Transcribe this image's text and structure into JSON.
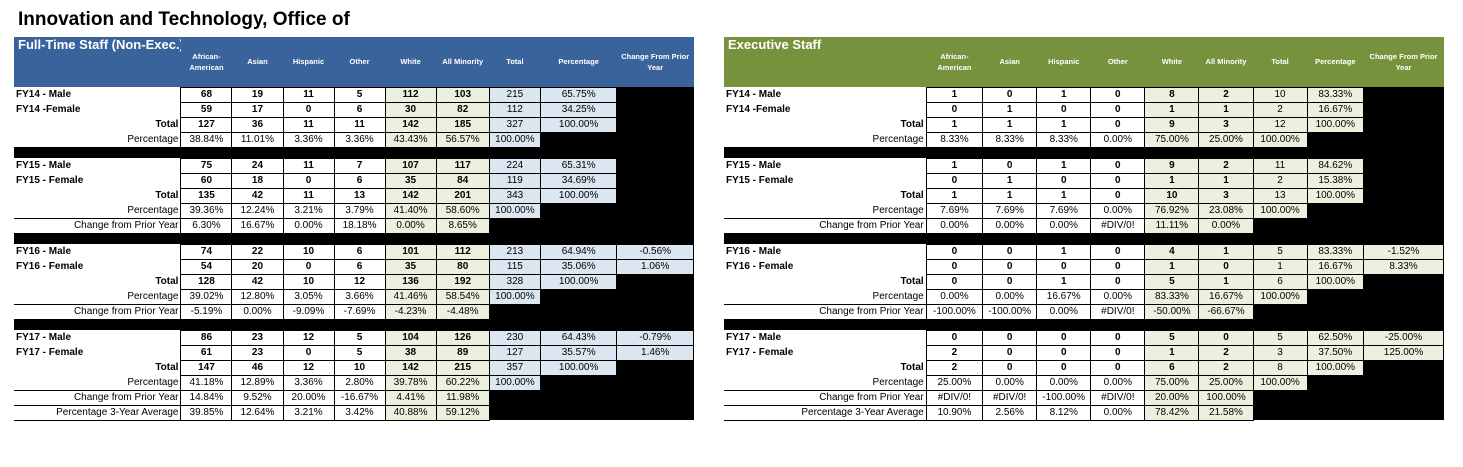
{
  "title": "Innovation and Technology, Office of",
  "columns": [
    "African-American",
    "Asian",
    "Hispanic",
    "Other",
    "White",
    "All Minority",
    "Total",
    "Percentage",
    "Change From Prior Year"
  ],
  "fulltime": {
    "heading": "Full-Time Staff (Non-Exec.)",
    "groups": [
      {
        "rows": [
          {
            "label": "FY14 - Male",
            "vals": [
              "68",
              "19",
              "11",
              "5",
              "112",
              "103",
              "215",
              "65.75%",
              ""
            ]
          },
          {
            "label": "FY14 -Female",
            "vals": [
              "59",
              "17",
              "0",
              "6",
              "30",
              "82",
              "112",
              "34.25%",
              ""
            ]
          },
          {
            "label": "Total",
            "vals": [
              "127",
              "36",
              "11",
              "11",
              "142",
              "185",
              "327",
              "100.00%",
              ""
            ]
          },
          {
            "label": "Percentage",
            "vals": [
              "38.84%",
              "11.01%",
              "3.36%",
              "3.36%",
              "43.43%",
              "56.57%",
              "100.00%",
              "",
              ""
            ]
          }
        ]
      },
      {
        "rows": [
          {
            "label": "FY15 - Male",
            "vals": [
              "75",
              "24",
              "11",
              "7",
              "107",
              "117",
              "224",
              "65.31%",
              ""
            ]
          },
          {
            "label": "FY15 - Female",
            "vals": [
              "60",
              "18",
              "0",
              "6",
              "35",
              "84",
              "119",
              "34.69%",
              ""
            ]
          },
          {
            "label": "Total",
            "vals": [
              "135",
              "42",
              "11",
              "13",
              "142",
              "201",
              "343",
              "100.00%",
              ""
            ]
          },
          {
            "label": "Percentage",
            "vals": [
              "39.36%",
              "12.24%",
              "3.21%",
              "3.79%",
              "41.40%",
              "58.60%",
              "100.00%",
              "",
              ""
            ]
          },
          {
            "label": "Change from Prior Year",
            "vals": [
              "6.30%",
              "16.67%",
              "0.00%",
              "18.18%",
              "0.00%",
              "8.65%",
              "",
              "",
              ""
            ]
          }
        ]
      },
      {
        "rows": [
          {
            "label": "FY16 - Male",
            "vals": [
              "74",
              "22",
              "10",
              "6",
              "101",
              "112",
              "213",
              "64.94%",
              "-0.56%"
            ]
          },
          {
            "label": "FY16 - Female",
            "vals": [
              "54",
              "20",
              "0",
              "6",
              "35",
              "80",
              "115",
              "35.06%",
              "1.06%"
            ]
          },
          {
            "label": "Total",
            "vals": [
              "128",
              "42",
              "10",
              "12",
              "136",
              "192",
              "328",
              "100.00%",
              ""
            ]
          },
          {
            "label": "Percentage",
            "vals": [
              "39.02%",
              "12.80%",
              "3.05%",
              "3.66%",
              "41.46%",
              "58.54%",
              "100.00%",
              "",
              ""
            ]
          },
          {
            "label": "Change from Prior Year",
            "vals": [
              "-5.19%",
              "0.00%",
              "-9.09%",
              "-7.69%",
              "-4.23%",
              "-4.48%",
              "",
              "",
              ""
            ]
          }
        ]
      },
      {
        "rows": [
          {
            "label": "FY17 - Male",
            "vals": [
              "86",
              "23",
              "12",
              "5",
              "104",
              "126",
              "230",
              "64.43%",
              "-0.79%"
            ]
          },
          {
            "label": "FY17 - Female",
            "vals": [
              "61",
              "23",
              "0",
              "5",
              "38",
              "89",
              "127",
              "35.57%",
              "1.46%"
            ]
          },
          {
            "label": "Total",
            "vals": [
              "147",
              "46",
              "12",
              "10",
              "142",
              "215",
              "357",
              "100.00%",
              ""
            ]
          },
          {
            "label": "Percentage",
            "vals": [
              "41.18%",
              "12.89%",
              "3.36%",
              "2.80%",
              "39.78%",
              "60.22%",
              "100.00%",
              "",
              ""
            ]
          },
          {
            "label": "Change from Prior Year",
            "vals": [
              "14.84%",
              "9.52%",
              "20.00%",
              "-16.67%",
              "4.41%",
              "11.98%",
              "",
              "",
              ""
            ]
          },
          {
            "label": "Percentage 3-Year Average",
            "vals": [
              "39.85%",
              "12.64%",
              "3.21%",
              "3.42%",
              "40.88%",
              "59.12%",
              "",
              "",
              ""
            ]
          }
        ]
      }
    ]
  },
  "executive": {
    "heading": "Executive Staff",
    "groups": [
      {
        "rows": [
          {
            "label": "FY14 - Male",
            "vals": [
              "1",
              "0",
              "1",
              "0",
              "8",
              "2",
              "10",
              "83.33%",
              ""
            ]
          },
          {
            "label": "FY14 -Female",
            "vals": [
              "0",
              "1",
              "0",
              "0",
              "1",
              "1",
              "2",
              "16.67%",
              ""
            ]
          },
          {
            "label": "Total",
            "vals": [
              "1",
              "1",
              "1",
              "0",
              "9",
              "3",
              "12",
              "100.00%",
              ""
            ]
          },
          {
            "label": "Percentage",
            "vals": [
              "8.33%",
              "8.33%",
              "8.33%",
              "0.00%",
              "75.00%",
              "25.00%",
              "100.00%",
              "",
              ""
            ]
          }
        ]
      },
      {
        "rows": [
          {
            "label": "FY15 - Male",
            "vals": [
              "1",
              "0",
              "1",
              "0",
              "9",
              "2",
              "11",
              "84.62%",
              ""
            ]
          },
          {
            "label": "FY15 - Female",
            "vals": [
              "0",
              "1",
              "0",
              "0",
              "1",
              "1",
              "2",
              "15.38%",
              ""
            ]
          },
          {
            "label": "Total",
            "vals": [
              "1",
              "1",
              "1",
              "0",
              "10",
              "3",
              "13",
              "100.00%",
              ""
            ]
          },
          {
            "label": "Percentage",
            "vals": [
              "7.69%",
              "7.69%",
              "7.69%",
              "0.00%",
              "76.92%",
              "23.08%",
              "100.00%",
              "",
              ""
            ]
          },
          {
            "label": "Change from Prior Year",
            "vals": [
              "0.00%",
              "0.00%",
              "0.00%",
              "#DIV/0!",
              "11.11%",
              "0.00%",
              "",
              "",
              ""
            ]
          }
        ]
      },
      {
        "rows": [
          {
            "label": "FY16 - Male",
            "vals": [
              "0",
              "0",
              "1",
              "0",
              "4",
              "1",
              "5",
              "83.33%",
              "-1.52%"
            ]
          },
          {
            "label": "FY16 - Female",
            "vals": [
              "0",
              "0",
              "0",
              "0",
              "1",
              "0",
              "1",
              "16.67%",
              "8.33%"
            ]
          },
          {
            "label": "Total",
            "vals": [
              "0",
              "0",
              "1",
              "0",
              "5",
              "1",
              "6",
              "100.00%",
              ""
            ]
          },
          {
            "label": "Percentage",
            "vals": [
              "0.00%",
              "0.00%",
              "16.67%",
              "0.00%",
              "83.33%",
              "16.67%",
              "100.00%",
              "",
              ""
            ]
          },
          {
            "label": "Change from Prior Year",
            "vals": [
              "-100.00%",
              "-100.00%",
              "0.00%",
              "#DIV/0!",
              "-50.00%",
              "-66.67%",
              "",
              "",
              ""
            ]
          }
        ]
      },
      {
        "rows": [
          {
            "label": "FY17 - Male",
            "vals": [
              "0",
              "0",
              "0",
              "0",
              "5",
              "0",
              "5",
              "62.50%",
              "-25.00%"
            ]
          },
          {
            "label": "FY17 - Female",
            "vals": [
              "2",
              "0",
              "0",
              "0",
              "1",
              "2",
              "3",
              "37.50%",
              "125.00%"
            ]
          },
          {
            "label": "Total",
            "vals": [
              "2",
              "0",
              "0",
              "0",
              "6",
              "2",
              "8",
              "100.00%",
              ""
            ]
          },
          {
            "label": "Percentage",
            "vals": [
              "25.00%",
              "0.00%",
              "0.00%",
              "0.00%",
              "75.00%",
              "25.00%",
              "100.00%",
              "",
              ""
            ]
          },
          {
            "label": "Change from Prior Year",
            "vals": [
              "#DIV/0!",
              "#DIV/0!",
              "-100.00%",
              "#DIV/0!",
              "20.00%",
              "100.00%",
              "",
              "",
              ""
            ]
          },
          {
            "label": "Percentage 3-Year Average",
            "vals": [
              "10.90%",
              "2.56%",
              "8.12%",
              "0.00%",
              "78.42%",
              "21.58%",
              "",
              "",
              ""
            ]
          }
        ]
      }
    ]
  }
}
